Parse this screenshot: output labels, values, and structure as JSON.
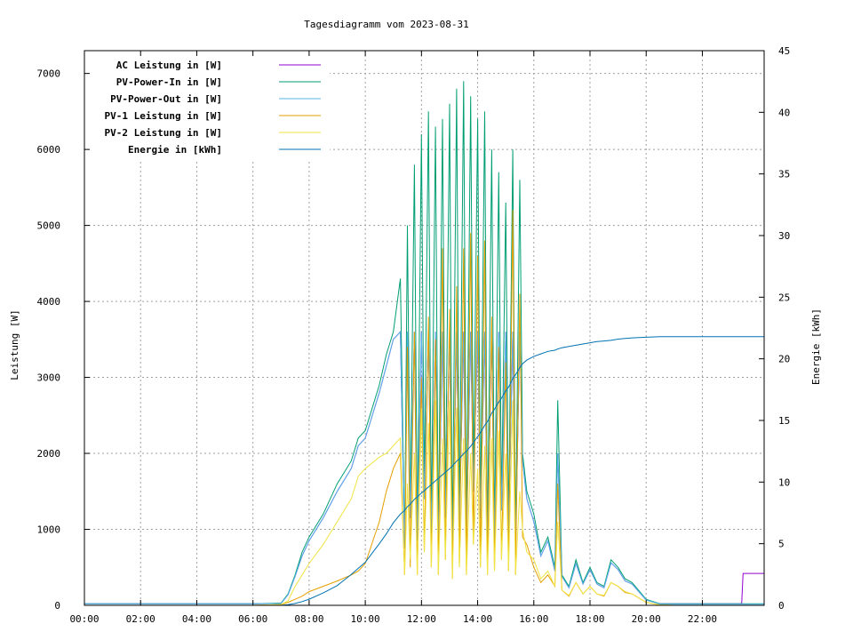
{
  "chart_data": {
    "type": "line",
    "title": "Tagesdiagramm vom 2023-08-31",
    "ylabel": "Leistung [W]",
    "y2label": "Energie [kWh]",
    "xlabel": "",
    "xlim": [
      0,
      24.2
    ],
    "ylim": [
      0,
      7300
    ],
    "y2lim": [
      0,
      45
    ],
    "grid": true,
    "legend_position": "top-left",
    "x_ticks": [
      "00:00",
      "02:00",
      "04:00",
      "06:00",
      "08:00",
      "10:00",
      "12:00",
      "14:00",
      "16:00",
      "18:00",
      "20:00",
      "22:00"
    ],
    "y_ticks": [
      "0",
      "1000",
      "2000",
      "3000",
      "4000",
      "5000",
      "6000",
      "7000"
    ],
    "y2_ticks": [
      "0",
      "5",
      "10",
      "15",
      "20",
      "25",
      "30",
      "35",
      "40",
      "45"
    ],
    "x": [
      0,
      6,
      7,
      7.25,
      7.5,
      7.75,
      8,
      8.5,
      9,
      9.5,
      9.75,
      10,
      10.5,
      10.75,
      11,
      11.25,
      11.4,
      11.5,
      11.6,
      11.75,
      11.85,
      12,
      12.1,
      12.25,
      12.35,
      12.5,
      12.6,
      12.75,
      12.85,
      13,
      13.1,
      13.25,
      13.35,
      13.5,
      13.6,
      13.75,
      13.85,
      14,
      14.1,
      14.25,
      14.35,
      14.5,
      14.6,
      14.75,
      14.85,
      15,
      15.1,
      15.25,
      15.35,
      15.5,
      15.6,
      15.75,
      16,
      16.25,
      16.5,
      16.75,
      16.85,
      17,
      17.25,
      17.5,
      17.75,
      18,
      18.25,
      18.5,
      18.75,
      19,
      19.25,
      19.5,
      20,
      20.5,
      21,
      22,
      23,
      23.4,
      23.45,
      24.2
    ],
    "series": [
      {
        "name": "AC Leistung in [W]",
        "color": "#9400d3",
        "axis": "y",
        "values": [
          20,
          20,
          25,
          140,
          380,
          650,
          850,
          1150,
          1500,
          1800,
          2100,
          2200,
          2800,
          3150,
          3500,
          3600,
          750,
          3600,
          1150,
          3600,
          850,
          3600,
          1400,
          3600,
          950,
          3600,
          750,
          3600,
          1150,
          3600,
          650,
          3600,
          1050,
          3600,
          850,
          3600,
          1500,
          3600,
          1150,
          3600,
          750,
          3600,
          850,
          3600,
          1250,
          3600,
          950,
          3600,
          750,
          3600,
          1900,
          1400,
          1100,
          650,
          850,
          450,
          2000,
          380,
          230,
          550,
          280,
          470,
          280,
          230,
          560,
          470,
          320,
          280,
          70,
          20,
          20,
          20,
          20,
          20,
          420,
          420
        ]
      },
      {
        "name": "PV-Power-In in [W]",
        "color": "#009e73",
        "axis": "y",
        "values": [
          20,
          20,
          30,
          150,
          400,
          700,
          900,
          1200,
          1600,
          1900,
          2200,
          2300,
          2900,
          3300,
          3600,
          4300,
          800,
          5000,
          1200,
          5800,
          900,
          6200,
          1500,
          6500,
          1000,
          6300,
          800,
          6400,
          1200,
          6600,
          700,
          6800,
          1100,
          6900,
          900,
          6700,
          1600,
          6400,
          1200,
          6500,
          800,
          6000,
          900,
          5700,
          1300,
          5300,
          1000,
          6000,
          800,
          5600,
          2000,
          1500,
          1200,
          700,
          900,
          500,
          2700,
          400,
          250,
          600,
          300,
          500,
          300,
          250,
          600,
          500,
          350,
          300,
          80,
          20,
          20,
          20,
          20,
          20,
          20,
          20
        ]
      },
      {
        "name": "PV-Power-Out in [W]",
        "color": "#56b4e9",
        "axis": "y",
        "values": [
          20,
          20,
          25,
          140,
          380,
          650,
          850,
          1150,
          1500,
          1800,
          2100,
          2200,
          2800,
          3150,
          3500,
          3600,
          750,
          3600,
          1150,
          3600,
          850,
          3600,
          1400,
          3600,
          950,
          3600,
          750,
          3600,
          1150,
          3600,
          650,
          3600,
          1050,
          3600,
          850,
          3600,
          1500,
          3600,
          1150,
          3600,
          750,
          3600,
          850,
          3600,
          1250,
          3600,
          950,
          3600,
          750,
          3600,
          1900,
          1400,
          1100,
          650,
          850,
          450,
          2000,
          380,
          230,
          550,
          280,
          470,
          280,
          230,
          560,
          470,
          320,
          280,
          70,
          15,
          15,
          15,
          15,
          15,
          15,
          15
        ]
      },
      {
        "name": "PV-1 Leistung in [W]",
        "color": "#e69f00",
        "axis": "y",
        "values": [
          0,
          0,
          10,
          40,
          80,
          120,
          180,
          250,
          320,
          400,
          450,
          550,
          1100,
          1500,
          1800,
          2000,
          400,
          3400,
          500,
          3600,
          400,
          3000,
          700,
          3800,
          500,
          3500,
          400,
          4700,
          600,
          3900,
          350,
          4200,
          500,
          4700,
          400,
          4900,
          800,
          4600,
          500,
          4800,
          400,
          3800,
          450,
          3400,
          600,
          3200,
          450,
          5200,
          400,
          4100,
          900,
          800,
          500,
          300,
          400,
          250,
          1600,
          200,
          120,
          300,
          150,
          250,
          150,
          120,
          300,
          250,
          170,
          150,
          40,
          5,
          0,
          0,
          0,
          0,
          0,
          0
        ]
      },
      {
        "name": "PV-2 Leistung in [W]",
        "color": "#f0e442",
        "axis": "y",
        "values": [
          0,
          0,
          10,
          60,
          250,
          400,
          550,
          800,
          1100,
          1400,
          1700,
          1800,
          1950,
          2000,
          2100,
          2200,
          400,
          1600,
          600,
          2000,
          400,
          2600,
          700,
          2400,
          500,
          2700,
          400,
          2200,
          600,
          2700,
          350,
          2600,
          500,
          2200,
          400,
          2000,
          800,
          1800,
          500,
          2100,
          400,
          2200,
          450,
          2300,
          600,
          2000,
          450,
          2700,
          400,
          1500,
          1000,
          700,
          600,
          350,
          450,
          250,
          1100,
          200,
          130,
          300,
          150,
          250,
          150,
          130,
          300,
          250,
          180,
          150,
          40,
          5,
          0,
          0,
          0,
          0,
          0,
          0
        ]
      },
      {
        "name": "Energie in [kWh]",
        "color": "#0072b2",
        "axis": "y2",
        "values": [
          0,
          0,
          0,
          0.05,
          0.15,
          0.3,
          0.5,
          1.0,
          1.6,
          2.5,
          3.0,
          3.5,
          5.0,
          5.8,
          6.7,
          7.4,
          7.7,
          8.0,
          8.2,
          8.6,
          8.8,
          9.1,
          9.3,
          9.6,
          9.8,
          10.1,
          10.3,
          10.6,
          10.8,
          11.1,
          11.3,
          11.7,
          11.9,
          12.3,
          12.5,
          12.9,
          13.2,
          13.7,
          14.0,
          14.6,
          14.9,
          15.6,
          15.9,
          16.5,
          16.8,
          17.4,
          17.7,
          18.4,
          18.7,
          19.3,
          19.6,
          19.9,
          20.2,
          20.4,
          20.6,
          20.7,
          20.8,
          20.9,
          21.0,
          21.1,
          21.2,
          21.3,
          21.4,
          21.45,
          21.5,
          21.6,
          21.65,
          21.7,
          21.75,
          21.8,
          21.8,
          21.8,
          21.8,
          21.8,
          21.8,
          21.8
        ]
      }
    ]
  }
}
